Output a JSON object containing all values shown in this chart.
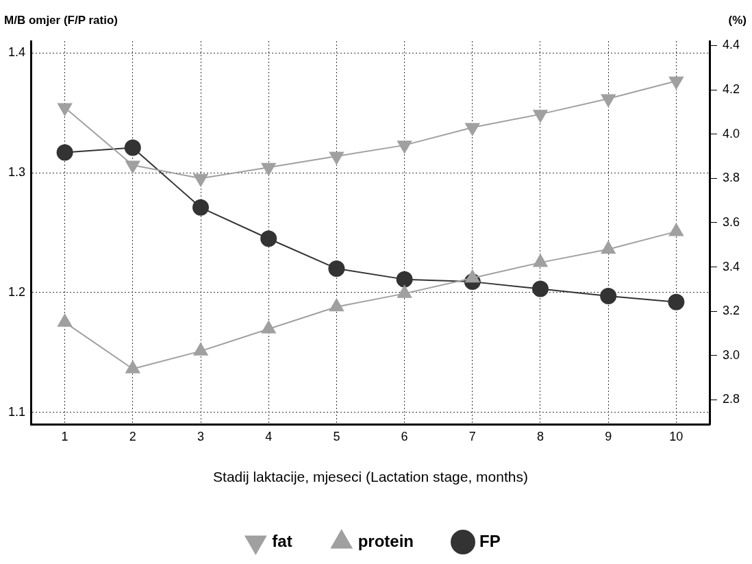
{
  "chart_data": {
    "type": "line",
    "xlabel": "Stadij laktacije, mjeseci (Lactation stage, months)",
    "ylabel": "M/B omjer (F/P ratio)",
    "y2label": "(%)",
    "categories": [
      "1",
      "2",
      "3",
      "4",
      "5",
      "6",
      "7",
      "8",
      "9",
      "10"
    ],
    "series": [
      {
        "name": "FP",
        "color": "#333333",
        "marker": "circle",
        "values": [
          1.317,
          1.321,
          1.271,
          1.245,
          1.22,
          1.211,
          1.209,
          1.203,
          1.197,
          1.192
        ]
      },
      {
        "name": "protein",
        "color": "#a0a0a0",
        "marker": "triangle",
        "axis": "y2",
        "values": [
          3.15,
          2.94,
          3.02,
          3.12,
          3.22,
          3.28,
          3.35,
          3.42,
          3.48,
          3.56
        ]
      },
      {
        "name": "fat",
        "color": "#a0a0a0",
        "marker": "triangle_down",
        "axis": "y2",
        "values": [
          4.12,
          3.86,
          3.8,
          3.85,
          3.9,
          3.95,
          4.03,
          4.09,
          4.16,
          4.24
        ]
      }
    ],
    "ylim": [
      1.09,
      1.41
    ],
    "yticks": [
      1.1,
      1.2,
      1.3,
      1.4
    ],
    "y2lim": [
      2.69,
      4.42
    ],
    "y2ticks": [
      2.8,
      {
        "value": 3,
        "label": "3.0"
      },
      3.2,
      3.4,
      3.6,
      3.8,
      {
        "value": 4,
        "label": "4.0"
      },
      4.2,
      4.4
    ],
    "grid": true,
    "legend": "bottom",
    "line_style": "solid"
  }
}
